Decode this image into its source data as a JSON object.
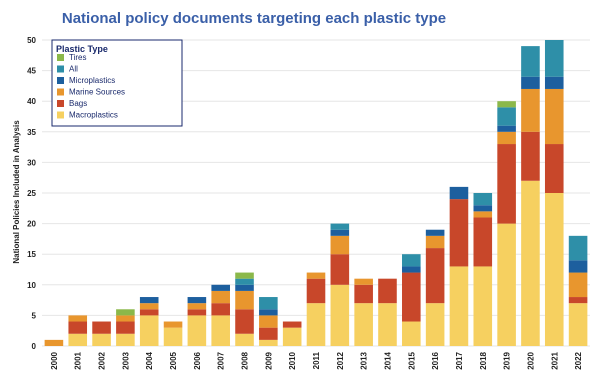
{
  "chart_data": {
    "type": "bar",
    "stacked": true,
    "title": "National policy documents targeting each plastic type",
    "ylabel": "National Policies Included in Analysis",
    "xlabel": "",
    "ylim": [
      0,
      50
    ],
    "yticks": [
      0,
      5,
      10,
      15,
      20,
      25,
      30,
      35,
      40,
      45,
      50
    ],
    "grid": true,
    "legend_position": "top-left",
    "legend_title": "Plastic Type",
    "categories": [
      "2000",
      "2001",
      "2002",
      "2003",
      "2004",
      "2005",
      "2006",
      "2007",
      "2008",
      "2009",
      "2010",
      "2011",
      "2012",
      "2013",
      "2014",
      "2015",
      "2016",
      "2017",
      "2018",
      "2019",
      "2020",
      "2021",
      "2022"
    ],
    "series": [
      {
        "name": "Macroplastics",
        "color": "#f6d060",
        "values": [
          0,
          2,
          2,
          2,
          5,
          3,
          5,
          5,
          2,
          1,
          3,
          7,
          10,
          7,
          7,
          4,
          7,
          13,
          13,
          20,
          27,
          25,
          7
        ]
      },
      {
        "name": "Bags",
        "color": "#c8472a",
        "values": [
          0,
          2,
          2,
          2,
          1,
          0,
          1,
          2,
          4,
          2,
          1,
          4,
          5,
          3,
          4,
          8,
          9,
          11,
          8,
          13,
          8,
          8,
          1
        ]
      },
      {
        "name": "Marine Sources",
        "color": "#e8962e",
        "values": [
          1,
          1,
          0,
          1,
          1,
          1,
          1,
          2,
          3,
          2,
          0,
          1,
          3,
          1,
          0,
          0,
          2,
          0,
          1,
          2,
          7,
          9,
          4
        ]
      },
      {
        "name": "Microplastics",
        "color": "#1d5f9e",
        "values": [
          0,
          0,
          0,
          0,
          1,
          0,
          1,
          1,
          1,
          1,
          0,
          0,
          1,
          0,
          0,
          1,
          1,
          2,
          1,
          1,
          2,
          2,
          2
        ]
      },
      {
        "name": "All",
        "color": "#2e8fa8",
        "values": [
          0,
          0,
          0,
          0,
          0,
          0,
          0,
          0,
          1,
          2,
          0,
          0,
          1,
          0,
          0,
          2,
          0,
          0,
          2,
          3,
          5,
          6,
          4
        ]
      },
      {
        "name": "Tires",
        "color": "#8bb84a",
        "values": [
          0,
          0,
          0,
          1,
          0,
          0,
          0,
          0,
          1,
          0,
          0,
          0,
          0,
          0,
          0,
          0,
          0,
          0,
          0,
          1,
          0,
          0,
          0
        ]
      }
    ],
    "legend_order": [
      "Tires",
      "All",
      "Microplastics",
      "Marine Sources",
      "Bags",
      "Macroplastics"
    ]
  }
}
